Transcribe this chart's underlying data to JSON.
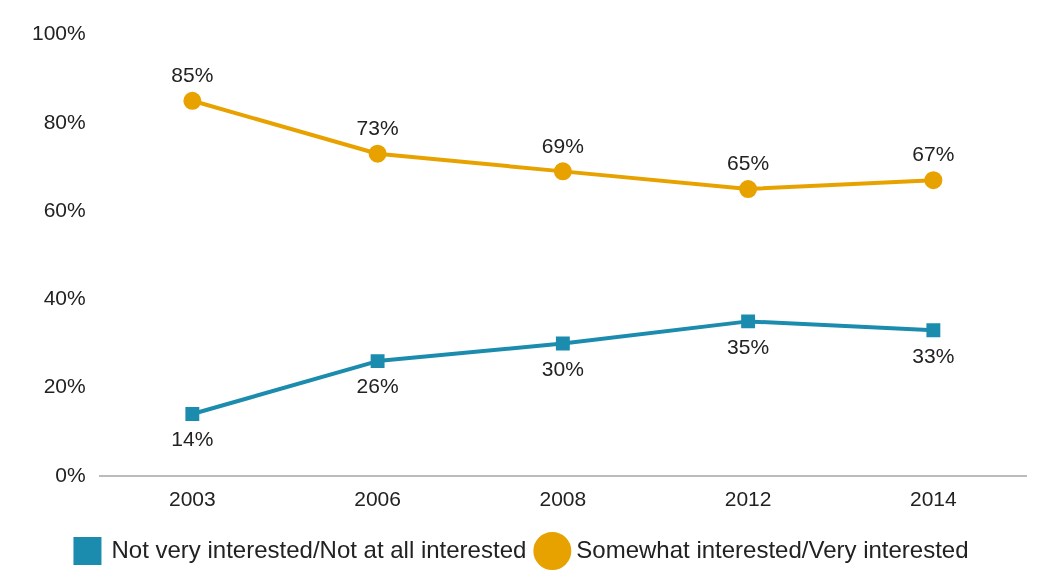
{
  "chart_data": {
    "type": "line",
    "categories": [
      "2003",
      "2006",
      "2008",
      "2012",
      "2014"
    ],
    "series": [
      {
        "name": "Not very interested/Not at all interested",
        "color": "#1b8cae",
        "marker": "square",
        "values": [
          14,
          26,
          30,
          35,
          33
        ],
        "value_labels": [
          "14%",
          "26%",
          "30%",
          "35%",
          "33%"
        ]
      },
      {
        "name": "Somewhat interested/Very interested",
        "color": "#e8a200",
        "marker": "circle",
        "values": [
          85,
          73,
          69,
          65,
          67
        ],
        "value_labels": [
          "85%",
          "73%",
          "69%",
          "65%",
          "67%"
        ]
      }
    ],
    "ylim": [
      0,
      100
    ],
    "yticks": [
      {
        "value": 0,
        "label": "0%"
      },
      {
        "value": 20,
        "label": "20%"
      },
      {
        "value": 40,
        "label": "40%"
      },
      {
        "value": 60,
        "label": "60%"
      },
      {
        "value": 80,
        "label": "80%"
      },
      {
        "value": 100,
        "label": "100%"
      }
    ],
    "grid": false,
    "legend": "bottom"
  }
}
